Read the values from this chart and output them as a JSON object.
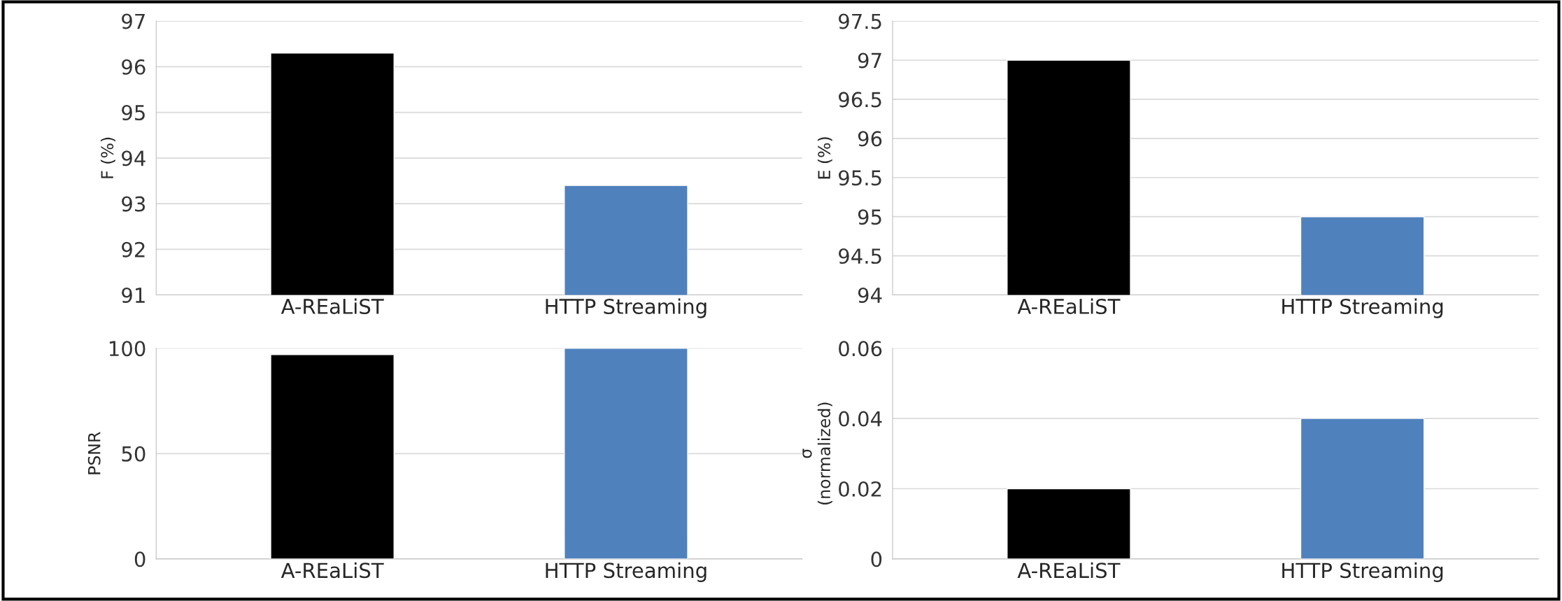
{
  "chart_data": [
    {
      "type": "bar",
      "ylabel": "F (%)",
      "categories": [
        "A-REaLiST",
        "HTTP Streaming"
      ],
      "values": [
        96.3,
        93.4
      ],
      "colors": [
        "#000000",
        "#4f81bd"
      ],
      "ylim": [
        91,
        97
      ],
      "yticks": [
        91,
        92,
        93,
        94,
        95,
        96,
        97
      ],
      "grid": "y"
    },
    {
      "type": "bar",
      "ylabel": "E (%)",
      "categories": [
        "A-REaLiST",
        "HTTP Streaming"
      ],
      "values": [
        97.0,
        95.0
      ],
      "colors": [
        "#000000",
        "#4f81bd"
      ],
      "ylim": [
        94,
        97.5
      ],
      "yticks": [
        94,
        94.5,
        95,
        95.5,
        96,
        96.5,
        97,
        97.5
      ],
      "grid": "y"
    },
    {
      "type": "bar",
      "ylabel": "PSNR",
      "categories": [
        "A-REaLiST",
        "HTTP Streaming"
      ],
      "values": [
        97,
        100
      ],
      "colors": [
        "#000000",
        "#4f81bd"
      ],
      "ylim": [
        0,
        100
      ],
      "yticks": [
        0,
        50,
        100
      ],
      "grid": "y"
    },
    {
      "type": "bar",
      "ylabel": "σ\n(normalized)",
      "categories": [
        "A-REaLiST",
        "HTTP Streaming"
      ],
      "values": [
        0.02,
        0.04
      ],
      "colors": [
        "#000000",
        "#4f81bd"
      ],
      "ylim": [
        0,
        0.06
      ],
      "yticks": [
        0,
        0.02,
        0.04,
        0.06
      ],
      "grid": "y"
    }
  ]
}
